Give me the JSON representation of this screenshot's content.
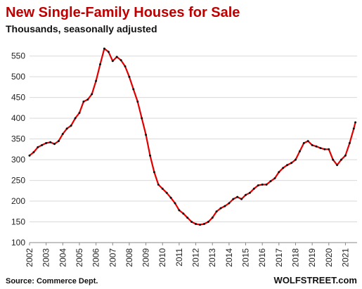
{
  "chart_data": {
    "type": "line",
    "title": "New Single-Family Houses for Sale",
    "subtitle": "Thousands, seasonally adjusted",
    "xlabel": "",
    "ylabel": "",
    "source": "Source: Commerce Dept.",
    "brand": "WOLFSTREET.com",
    "ylim": [
      100,
      580
    ],
    "xlim": [
      2002,
      2021.7
    ],
    "grid": true,
    "y_ticks": [
      "100",
      "150",
      "200",
      "250",
      "300",
      "350",
      "400",
      "450",
      "500",
      "550"
    ],
    "x_ticks": [
      "2002",
      "2003",
      "2004",
      "2005",
      "2006",
      "2007",
      "2008",
      "2009",
      "2010",
      "2011",
      "2012",
      "2013",
      "2014",
      "2015",
      "2016",
      "2017",
      "2018",
      "2019",
      "2020",
      "2021"
    ],
    "line_color": "#e00000",
    "marker_color": "#111111",
    "series": [
      {
        "x": [
          2002.0,
          2002.25,
          2002.5,
          2002.75,
          2003.0,
          2003.25,
          2003.5,
          2003.75,
          2004.0,
          2004.25,
          2004.5,
          2004.75,
          2005.0,
          2005.25,
          2005.5,
          2005.75,
          2006.0,
          2006.25,
          2006.5,
          2006.75,
          2007.0,
          2007.25,
          2007.5,
          2007.75,
          2008.0,
          2008.25,
          2008.5,
          2008.75,
          2009.0,
          2009.25,
          2009.5,
          2009.75,
          2010.0,
          2010.25,
          2010.5,
          2010.75,
          2011.0,
          2011.25,
          2011.5,
          2011.75,
          2012.0,
          2012.25,
          2012.5,
          2012.75,
          2013.0,
          2013.25,
          2013.5,
          2013.75,
          2014.0,
          2014.25,
          2014.5,
          2014.75,
          2015.0,
          2015.25,
          2015.5,
          2015.75,
          2016.0,
          2016.25,
          2016.5,
          2016.75,
          2017.0,
          2017.25,
          2017.5,
          2017.75,
          2018.0,
          2018.25,
          2018.5,
          2018.75,
          2019.0,
          2019.25,
          2019.5,
          2019.75,
          2020.0,
          2020.25,
          2020.5,
          2020.75,
          2021.0,
          2021.25,
          2021.5,
          2021.6
        ],
        "values": [
          310,
          318,
          330,
          335,
          340,
          342,
          338,
          345,
          362,
          375,
          382,
          400,
          413,
          440,
          445,
          458,
          490,
          530,
          568,
          560,
          538,
          548,
          540,
          525,
          500,
          470,
          440,
          400,
          360,
          310,
          270,
          240,
          230,
          220,
          208,
          195,
          178,
          170,
          160,
          150,
          145,
          143,
          145,
          150,
          160,
          175,
          183,
          188,
          195,
          205,
          210,
          205,
          215,
          220,
          230,
          238,
          240,
          240,
          248,
          255,
          270,
          280,
          287,
          292,
          300,
          320,
          340,
          345,
          335,
          332,
          328,
          325,
          325,
          300,
          287,
          300,
          310,
          340,
          375,
          390
        ]
      }
    ]
  }
}
